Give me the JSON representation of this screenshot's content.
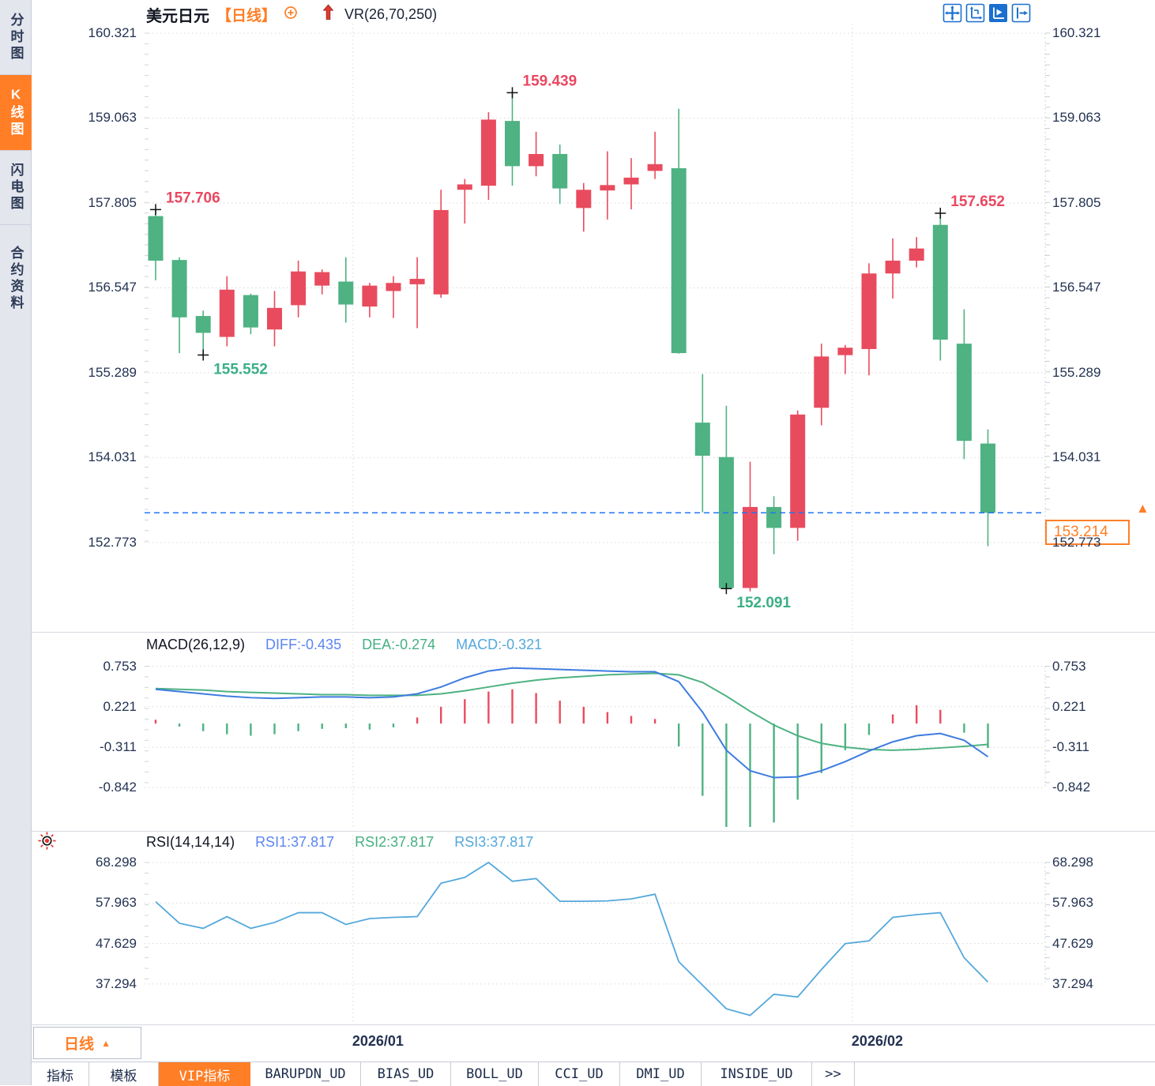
{
  "colors": {
    "up": "#e94b5e",
    "down": "#4eb282",
    "orange": "#ff7e26",
    "blue_icon": "#1a6fce",
    "diff_line": "#3e7ce0",
    "dea_line": "#4eb282",
    "rsi_line": "#54a8dc",
    "ann_up": "#ea4760",
    "ann_down": "#3aaf85",
    "price_line": "#2276f2",
    "diff_text": "#5b86f2",
    "dea_text": "#46b083",
    "macd_text": "#54a8dc"
  },
  "sidebar": {
    "items": [
      {
        "label": "分时图",
        "active": false
      },
      {
        "label": "K线图",
        "active": true
      },
      {
        "label": "闪电图",
        "active": false
      },
      {
        "label": "合约资料",
        "active": false
      }
    ]
  },
  "header": {
    "symbol": "美元日元",
    "period_tag": "【日线】",
    "indicator": "VR(26,70,250)"
  },
  "toolbar_icons": [
    {
      "name": "crosshair-move-icon",
      "active": false
    },
    {
      "name": "axis-scale-icon",
      "active": false
    },
    {
      "name": "chart-play-icon",
      "active": true
    },
    {
      "name": "pane-arrow-icon",
      "active": false
    }
  ],
  "chart_data": {
    "type": "candlestick",
    "title": "美元日元 日线",
    "price_axis": {
      "labels": [
        "160.321",
        "159.063",
        "157.805",
        "156.547",
        "155.289",
        "154.031",
        "152.773"
      ]
    },
    "candles": [
      [
        157.61,
        157.706,
        156.66,
        156.95
      ],
      [
        156.96,
        157.0,
        155.58,
        156.11
      ],
      [
        156.13,
        156.21,
        155.552,
        155.88
      ],
      [
        155.82,
        156.72,
        155.68,
        156.52
      ],
      [
        156.44,
        156.46,
        155.86,
        155.96
      ],
      [
        155.93,
        156.5,
        155.68,
        156.25
      ],
      [
        156.29,
        156.95,
        156.11,
        156.79
      ],
      [
        156.58,
        156.82,
        156.45,
        156.78
      ],
      [
        156.64,
        157.0,
        156.03,
        156.3
      ],
      [
        156.27,
        156.62,
        156.11,
        156.58
      ],
      [
        156.5,
        156.72,
        156.1,
        156.62
      ],
      [
        156.6,
        157.0,
        155.95,
        156.68
      ],
      [
        156.45,
        158.0,
        156.4,
        157.7
      ],
      [
        158.0,
        158.16,
        157.5,
        158.08
      ],
      [
        158.06,
        159.15,
        157.85,
        159.04
      ],
      [
        159.02,
        159.439,
        158.06,
        158.35
      ],
      [
        158.35,
        158.86,
        158.2,
        158.53
      ],
      [
        158.53,
        158.67,
        157.79,
        158.02
      ],
      [
        157.73,
        158.1,
        157.38,
        158.0
      ],
      [
        157.99,
        158.57,
        157.56,
        158.07
      ],
      [
        158.08,
        158.47,
        157.71,
        158.18
      ],
      [
        158.28,
        158.86,
        158.16,
        158.38
      ],
      [
        158.32,
        159.2,
        155.57,
        155.58
      ],
      [
        154.55,
        155.27,
        153.22,
        154.06
      ],
      [
        154.04,
        154.8,
        152.091,
        152.1
      ],
      [
        152.1,
        153.97,
        152.05,
        153.3
      ],
      [
        153.3,
        153.46,
        152.6,
        152.99
      ],
      [
        152.99,
        154.73,
        152.8,
        154.67
      ],
      [
        154.77,
        155.72,
        154.51,
        155.53
      ],
      [
        155.55,
        155.7,
        155.27,
        155.66
      ],
      [
        155.64,
        156.91,
        155.25,
        156.76
      ],
      [
        156.76,
        157.28,
        156.39,
        156.95
      ],
      [
        156.95,
        157.3,
        156.85,
        157.13
      ],
      [
        157.48,
        157.652,
        155.47,
        155.78
      ],
      [
        155.72,
        156.23,
        154.01,
        154.28
      ],
      [
        154.24,
        154.45,
        152.72,
        153.214
      ]
    ],
    "annotations": [
      {
        "index": 0,
        "price": 157.706,
        "text": "157.706",
        "type": "high",
        "color": "up"
      },
      {
        "index": 2,
        "price": 155.552,
        "text": "155.552",
        "type": "low",
        "color": "down"
      },
      {
        "index": 15,
        "price": 159.439,
        "text": "159.439",
        "type": "high",
        "color": "up"
      },
      {
        "index": 24,
        "price": 152.091,
        "text": "152.091",
        "type": "low",
        "color": "down"
      },
      {
        "index": 33,
        "price": 157.652,
        "text": "157.652",
        "type": "high",
        "color": "up"
      }
    ],
    "current_price": {
      "value": 153.214,
      "label": "153.214"
    },
    "x_axis": {
      "dates": [
        "2026/01",
        "2026/02"
      ],
      "grid_indices": [
        8.3,
        29.3
      ]
    },
    "macd": {
      "title": "MACD(26,12,9)",
      "diff_label": "DIFF:-0.435",
      "dea_label": "DEA:-0.274",
      "macd_label": "MACD:-0.321",
      "axis": [
        "0.753",
        "0.221",
        "-0.311",
        "-0.842"
      ],
      "diff": [
        0.45,
        0.42,
        0.39,
        0.36,
        0.34,
        0.33,
        0.34,
        0.35,
        0.35,
        0.34,
        0.35,
        0.39,
        0.48,
        0.6,
        0.69,
        0.73,
        0.72,
        0.71,
        0.7,
        0.69,
        0.68,
        0.68,
        0.55,
        0.15,
        -0.35,
        -0.62,
        -0.71,
        -0.7,
        -0.62,
        -0.5,
        -0.36,
        -0.24,
        -0.16,
        -0.13,
        -0.22,
        -0.435
      ],
      "dea": [
        0.46,
        0.45,
        0.44,
        0.42,
        0.41,
        0.4,
        0.39,
        0.38,
        0.38,
        0.37,
        0.37,
        0.37,
        0.39,
        0.43,
        0.48,
        0.53,
        0.57,
        0.6,
        0.62,
        0.64,
        0.65,
        0.66,
        0.64,
        0.54,
        0.36,
        0.16,
        -0.02,
        -0.16,
        -0.26,
        -0.31,
        -0.34,
        -0.35,
        -0.34,
        -0.32,
        -0.3,
        -0.274
      ],
      "hist": [
        0.05,
        -0.04,
        -0.1,
        -0.14,
        -0.16,
        -0.14,
        -0.1,
        -0.07,
        -0.06,
        -0.08,
        -0.05,
        0.08,
        0.22,
        0.32,
        0.42,
        0.45,
        0.4,
        0.3,
        0.22,
        0.15,
        0.1,
        0.06,
        -0.3,
        -0.95,
        -1.38,
        -1.5,
        -1.3,
        -1.0,
        -0.65,
        -0.35,
        -0.15,
        0.12,
        0.24,
        0.18,
        -0.12,
        -0.321
      ]
    },
    "rsi": {
      "title": "RSI(14,14,14)",
      "labels": [
        "RSI1:37.817",
        "RSI2:37.817",
        "RSI3:37.817"
      ],
      "axis": [
        "68.298",
        "57.963",
        "47.629",
        "37.294"
      ],
      "values": [
        58.3,
        52.8,
        51.5,
        54.5,
        51.5,
        53.0,
        55.5,
        55.5,
        52.5,
        54.0,
        54.3,
        54.5,
        63.0,
        64.5,
        68.3,
        63.5,
        64.2,
        58.4,
        58.4,
        58.5,
        59.0,
        60.2,
        43.0,
        37.0,
        31.0,
        29.3,
        34.7,
        34.0,
        41.0,
        47.6,
        48.3,
        54.3,
        55.0,
        55.5,
        44.0,
        37.817
      ]
    }
  },
  "bottom_axis": {
    "period_label": "日线"
  },
  "bottom_tabs": {
    "items": [
      {
        "label": "指标",
        "active": false
      },
      {
        "label": "模板",
        "active": false
      },
      {
        "label": "VIP指标",
        "active": true
      },
      {
        "label": "BARUPDN_UD",
        "active": false
      },
      {
        "label": "BIAS_UD",
        "active": false
      },
      {
        "label": "BOLL_UD",
        "active": false
      },
      {
        "label": "CCI_UD",
        "active": false
      },
      {
        "label": "DMI_UD",
        "active": false
      },
      {
        "label": "INSIDE_UD",
        "active": false
      },
      {
        "label": ">>",
        "active": false
      }
    ]
  }
}
